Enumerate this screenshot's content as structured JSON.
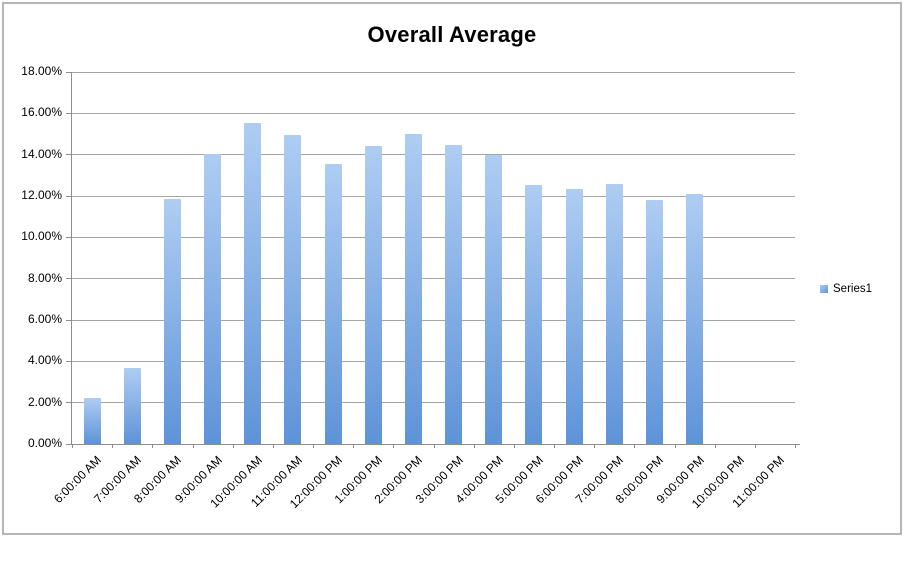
{
  "chart_data": {
    "type": "bar",
    "title": "Overall Average",
    "categories": [
      "6:00:00 AM",
      "7:00:00 AM",
      "8:00:00 AM",
      "9:00:00 AM",
      "10:00:00 AM",
      "11:00:00 AM",
      "12:00:00 PM",
      "1:00:00 PM",
      "2:00:00 PM",
      "3:00:00 PM",
      "4:00:00 PM",
      "5:00:00 PM",
      "6:00:00 PM",
      "7:00:00 PM",
      "8:00:00 PM",
      "9:00:00 PM",
      "10:00:00 PM",
      "11:00:00 PM"
    ],
    "series": [
      {
        "name": "Series1",
        "values": [
          2.25,
          3.7,
          11.85,
          14.05,
          15.55,
          14.95,
          13.55,
          14.4,
          15.0,
          14.45,
          14.0,
          12.55,
          12.35,
          12.6,
          11.8,
          12.1,
          0,
          0
        ]
      }
    ],
    "value_unit": "percent",
    "xlabel": "",
    "ylabel": "",
    "ylim": [
      0,
      18
    ],
    "y_tick_step": 2,
    "y_tick_labels": [
      "0.00%",
      "2.00%",
      "4.00%",
      "6.00%",
      "8.00%",
      "10.00%",
      "12.00%",
      "14.00%",
      "16.00%",
      "18.00%"
    ],
    "grid": true,
    "legend": {
      "position": "right",
      "entries": [
        "Series1"
      ]
    }
  },
  "colors": {
    "bar_top": "#AECDF3",
    "bar_bottom": "#5E93D8",
    "gridline": "#A6A6A6",
    "axis": "#8E8E8E",
    "text": "#000000",
    "frame_border": "#B5B5B5",
    "background": "#FFFFFF"
  }
}
